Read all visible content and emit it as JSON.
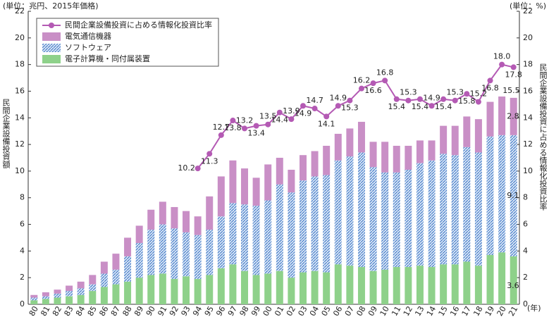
{
  "chart_data": {
    "type": "bar",
    "stacked": true,
    "y_unit_label": "(単位：兆円、2015年価格)",
    "y2_unit_label": "(単位：%)",
    "ylabel": "民間企業設備投資額",
    "y2label": "民間企業設備投資に占める情報化投資比率",
    "x_unit_label": "(年)",
    "categories": [
      "80",
      "81",
      "82",
      "83",
      "84",
      "85",
      "86",
      "87",
      "88",
      "89",
      "90",
      "91",
      "92",
      "93",
      "94",
      "95",
      "96",
      "97",
      "98",
      "99",
      "00",
      "01",
      "02",
      "03",
      "04",
      "05",
      "06",
      "07",
      "08",
      "09",
      "10",
      "11",
      "12",
      "13",
      "14",
      "15",
      "16",
      "17",
      "18",
      "19",
      "20",
      "21"
    ],
    "series": [
      {
        "name": "電子計算機・同付属装置",
        "color": "#8ed18a",
        "pattern": "solid",
        "values": [
          0.3,
          0.4,
          0.5,
          0.6,
          0.7,
          1.0,
          1.3,
          1.5,
          1.7,
          2.0,
          2.2,
          2.3,
          1.9,
          2.1,
          1.9,
          2.2,
          2.7,
          3.0,
          2.5,
          2.2,
          2.3,
          2.5,
          2.0,
          2.4,
          2.5,
          2.4,
          3.0,
          2.9,
          2.8,
          2.5,
          2.6,
          2.8,
          2.8,
          2.9,
          2.8,
          3.0,
          3.0,
          3.2,
          2.9,
          3.7,
          3.9,
          3.6
        ]
      },
      {
        "name": "ソフトウェア",
        "color": "#4a7fc9",
        "pattern": "hatch",
        "values": [
          0.2,
          0.2,
          0.3,
          0.4,
          0.5,
          0.5,
          1.0,
          1.1,
          1.9,
          2.6,
          3.4,
          3.7,
          3.8,
          3.3,
          3.3,
          3.4,
          3.9,
          4.6,
          5.0,
          5.2,
          5.5,
          6.5,
          6.4,
          6.9,
          7.1,
          7.3,
          7.8,
          8.2,
          8.6,
          7.8,
          7.3,
          7.1,
          7.3,
          7.7,
          8.0,
          8.3,
          8.2,
          8.6,
          8.5,
          8.9,
          8.8,
          9.1
        ]
      },
      {
        "name": "電気通信機器",
        "color": "#c98fc6",
        "pattern": "solid",
        "values": [
          0.2,
          0.3,
          0.3,
          0.4,
          0.5,
          0.7,
          0.9,
          1.2,
          1.4,
          1.3,
          1.5,
          1.7,
          1.6,
          1.6,
          1.4,
          2.5,
          3.0,
          3.2,
          2.7,
          2.1,
          2.7,
          2.0,
          1.7,
          1.9,
          1.9,
          2.2,
          2.0,
          2.1,
          2.3,
          1.9,
          2.3,
          2.0,
          1.8,
          1.7,
          1.5,
          2.1,
          2.2,
          2.3,
          2.5,
          2.6,
          2.9,
          2.8
        ]
      },
      {
        "name": "民間企業設備投資に占める情報化投資比率",
        "type": "line",
        "axis": "y2",
        "color": "#b45ab4",
        "values": [
          null,
          null,
          null,
          null,
          null,
          null,
          null,
          null,
          null,
          null,
          null,
          null,
          null,
          null,
          10.2,
          11.3,
          12.7,
          13.8,
          13.2,
          13.4,
          13.5,
          14.4,
          13.9,
          14.9,
          14.7,
          14.1,
          14.9,
          15.3,
          16.2,
          16.6,
          16.8,
          15.4,
          15.3,
          15.4,
          14.9,
          15.4,
          15.3,
          15.8,
          15.2,
          16.8,
          18.0,
          17.8
        ],
        "value_labels": [
          null,
          null,
          null,
          null,
          null,
          null,
          null,
          null,
          null,
          null,
          null,
          null,
          null,
          null,
          "10.2",
          "11.3",
          "12.7",
          "13.8",
          "13.2",
          "13.4",
          "13.5",
          "14.4",
          "13.9",
          "14.9",
          "14.7",
          "14.1",
          "14.9",
          "15.3",
          "16.2",
          "16.6",
          "16.8",
          "15.4",
          "15.3",
          "15.4",
          "14.9",
          "15.4",
          "15.3",
          "15.8",
          "15.2",
          "16.8",
          "18.0",
          "17.8"
        ]
      }
    ],
    "annotations": [
      "15.5"
    ],
    "ylim": [
      0,
      22
    ],
    "yticks": [
      0,
      2,
      4,
      6,
      8,
      10,
      12,
      14,
      16,
      18,
      20,
      22
    ],
    "y2lim": [
      0,
      22
    ],
    "y2ticks": [
      0,
      2,
      4,
      6,
      8,
      10,
      12,
      14,
      16,
      18,
      20,
      22
    ],
    "legend": "upper left"
  }
}
